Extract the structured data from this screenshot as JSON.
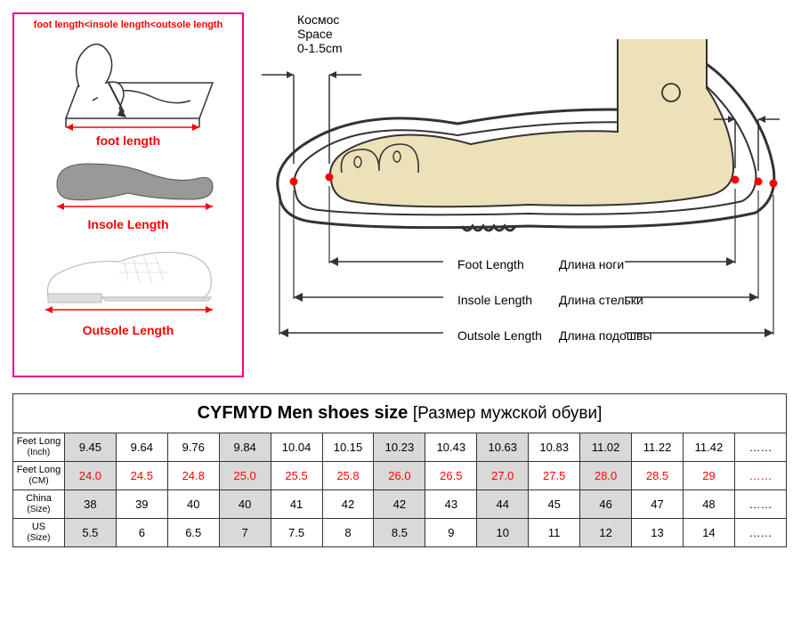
{
  "left_panel": {
    "rule": "foot length<insole length<outsole length",
    "foot_label": "foot length",
    "insole_label": "Insole Length",
    "outsole_label": "Outsole Length",
    "colors": {
      "border": "#ec008c",
      "text": "#ff0000",
      "insole_fill": "#999999"
    }
  },
  "diagram": {
    "space_ru": "Космос",
    "space_en": "Space",
    "space_val": "0-1.5cm",
    "dims": [
      {
        "en": "Foot Length",
        "ru": "Длина ноги"
      },
      {
        "en": "Insole Length",
        "ru": "Длина стельки"
      },
      {
        "en": "Outsole Length",
        "ru": "Длина подошвы"
      }
    ],
    "colors": {
      "foot_fill": "#ece1b9",
      "outline": "#333333",
      "marker": "#ff0000",
      "arrow": "#333333"
    }
  },
  "table": {
    "title": "CYFMYD Men shoes size",
    "title_ru": "[Размер мужской обуви]",
    "row_headers": [
      {
        "l1": "Feet Long",
        "l2": "(Inch)"
      },
      {
        "l1": "Feet Long",
        "l2": "(CM)"
      },
      {
        "l1": "China",
        "l2": "(Size)"
      },
      {
        "l1": "US",
        "l2": "(Size)"
      }
    ],
    "rows": {
      "inch": [
        "9.45",
        "9.64",
        "9.76",
        "9.84",
        "10.04",
        "10.15",
        "10.23",
        "10.43",
        "10.63",
        "10.83",
        "11.02",
        "11.22",
        "11.42",
        "……"
      ],
      "cm": [
        "24.0",
        "24.5",
        "24.8",
        "25.0",
        "25.5",
        "25.8",
        "26.0",
        "26.5",
        "27.0",
        "27.5",
        "28.0",
        "28.5",
        "29",
        "……"
      ],
      "china": [
        "38",
        "39",
        "40",
        "40",
        "41",
        "42",
        "42",
        "43",
        "44",
        "45",
        "46",
        "47",
        "48",
        "……"
      ],
      "us": [
        "5.5",
        "6",
        "6.5",
        "7",
        "7.5",
        "8",
        "8.5",
        "9",
        "10",
        "11",
        "12",
        "13",
        "14",
        "……"
      ]
    },
    "grey_cols": [
      0,
      3,
      6,
      8,
      10
    ],
    "styling": {
      "grey": "#d9d9d9",
      "red": "#ff0000",
      "border": "#333333"
    }
  }
}
